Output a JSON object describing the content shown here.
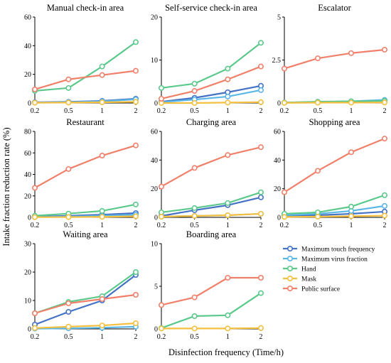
{
  "figure": {
    "ylabel": "Intake fraction reduction rate (%)",
    "xlabel": "Disinfection frequency (Time/h)"
  },
  "legend": {
    "items": [
      {
        "label": "Maximum touch frequency",
        "color": "#4472C4"
      },
      {
        "label": "Maximum virus fraction",
        "color": "#5BB7E5"
      },
      {
        "label": "Hand",
        "color": "#5CC98C"
      },
      {
        "label": "Mask",
        "color": "#F5C040"
      },
      {
        "label": "Public surface",
        "color": "#F0806A"
      }
    ]
  },
  "chart_data": [
    {
      "type": "line",
      "title": "Manual check-in area",
      "x": [
        "0.2",
        "0.5",
        "1",
        "2"
      ],
      "ylim": [
        0,
        60
      ],
      "yticks": [
        0,
        20,
        40,
        60
      ],
      "series": [
        {
          "name": "Maximum touch frequency",
          "values": [
            0.5,
            0.8,
            1.5,
            3
          ]
        },
        {
          "name": "Maximum virus fraction",
          "values": [
            0.3,
            0.6,
            1.2,
            2.5
          ]
        },
        {
          "name": "Hand",
          "values": [
            8.5,
            10.5,
            25.5,
            42.5
          ]
        },
        {
          "name": "Mask",
          "values": [
            0.2,
            0.3,
            0.5,
            0.8
          ]
        },
        {
          "name": "Public surface",
          "values": [
            9.5,
            16.5,
            19.5,
            22.5
          ]
        }
      ]
    },
    {
      "type": "line",
      "title": "Self-service check-in area",
      "x": [
        "0.2",
        "0.5",
        "1",
        "2"
      ],
      "ylim": [
        0,
        20
      ],
      "yticks": [
        0,
        10,
        20
      ],
      "series": [
        {
          "name": "Maximum touch frequency",
          "values": [
            0.3,
            1.2,
            2.5,
            4
          ]
        },
        {
          "name": "Maximum virus fraction",
          "values": [
            0.2,
            0.8,
            1.5,
            3
          ]
        },
        {
          "name": "Hand",
          "values": [
            3.5,
            4.5,
            8,
            14
          ]
        },
        {
          "name": "Mask",
          "values": [
            0,
            0,
            0.1,
            0.2
          ]
        },
        {
          "name": "Public surface",
          "values": [
            1,
            2.8,
            5.5,
            8.5
          ]
        }
      ]
    },
    {
      "type": "line",
      "title": "Escalator",
      "x": [
        "0.2",
        "0.5",
        "1",
        "2"
      ],
      "ylim": [
        0,
        5
      ],
      "yticks": [
        0,
        2.5,
        5
      ],
      "series": [
        {
          "name": "Maximum touch frequency",
          "values": [
            0.02,
            0.05,
            0.08,
            0.15
          ]
        },
        {
          "name": "Maximum virus fraction",
          "values": [
            0.03,
            0.06,
            0.1,
            0.18
          ]
        },
        {
          "name": "Hand",
          "values": [
            0.02,
            0.08,
            0.1,
            0.12
          ]
        },
        {
          "name": "Mask",
          "values": [
            0.01,
            0.02,
            0.02,
            0.03
          ]
        },
        {
          "name": "Public surface",
          "values": [
            2,
            2.6,
            2.9,
            3.1
          ]
        }
      ]
    },
    {
      "type": "line",
      "title": "Restaurant",
      "x": [
        "0.2",
        "0.5",
        "1",
        "2"
      ],
      "ylim": [
        0,
        80
      ],
      "yticks": [
        0,
        20,
        40,
        60,
        80
      ],
      "series": [
        {
          "name": "Maximum touch frequency",
          "values": [
            0.5,
            1.5,
            2.5,
            4
          ]
        },
        {
          "name": "Maximum virus fraction",
          "values": [
            0.3,
            0.8,
            1.5,
            2.5
          ]
        },
        {
          "name": "Hand",
          "values": [
            1.5,
            3.5,
            6,
            12
          ]
        },
        {
          "name": "Mask",
          "values": [
            0.2,
            0.3,
            0.5,
            1
          ]
        },
        {
          "name": "Public surface",
          "values": [
            27.5,
            45,
            57.5,
            67
          ]
        }
      ]
    },
    {
      "type": "line",
      "title": "Charging area",
      "x": [
        "0.2",
        "0.5",
        "1",
        "2"
      ],
      "ylim": [
        0,
        60
      ],
      "yticks": [
        0,
        20,
        40,
        60
      ],
      "series": [
        {
          "name": "Maximum touch frequency",
          "values": [
            1,
            5,
            8.5,
            14
          ]
        },
        {
          "name": "Maximum virus fraction",
          "values": [
            0.5,
            1,
            1.5,
            2.5
          ]
        },
        {
          "name": "Hand",
          "values": [
            3.5,
            6.5,
            10,
            17.5
          ]
        },
        {
          "name": "Mask",
          "values": [
            0.5,
            1,
            1.5,
            2.5
          ]
        },
        {
          "name": "Public surface",
          "values": [
            21.5,
            34.5,
            43.5,
            49
          ]
        }
      ]
    },
    {
      "type": "line",
      "title": "Shopping area",
      "x": [
        "0.2",
        "0.5",
        "1",
        "2"
      ],
      "ylim": [
        0,
        60
      ],
      "yticks": [
        0,
        20,
        40,
        60
      ],
      "series": [
        {
          "name": "Maximum touch frequency",
          "values": [
            1,
            1.5,
            2.5,
            4
          ]
        },
        {
          "name": "Maximum virus fraction",
          "values": [
            1.5,
            2.5,
            4.5,
            8
          ]
        },
        {
          "name": "Hand",
          "values": [
            2.5,
            3.5,
            7.5,
            15.5
          ]
        },
        {
          "name": "Mask",
          "values": [
            0.3,
            0.5,
            0.8,
            1.2
          ]
        },
        {
          "name": "Public surface",
          "values": [
            17.5,
            32.5,
            45.5,
            55
          ]
        }
      ]
    },
    {
      "type": "line",
      "title": "Waiting area",
      "x": [
        "0.2",
        "0.5",
        "1",
        "2"
      ],
      "ylim": [
        0,
        30
      ],
      "yticks": [
        0,
        10,
        20,
        30
      ],
      "series": [
        {
          "name": "Maximum touch frequency",
          "values": [
            1.5,
            6,
            10,
            19
          ]
        },
        {
          "name": "Maximum virus fraction",
          "values": [
            0.1,
            0.2,
            0.4,
            0.8
          ]
        },
        {
          "name": "Hand",
          "values": [
            5.5,
            9.5,
            11.5,
            20
          ]
        },
        {
          "name": "Mask",
          "values": [
            0.3,
            0.8,
            1.2,
            2
          ]
        },
        {
          "name": "Public surface",
          "values": [
            5.5,
            9,
            10.5,
            12
          ]
        }
      ]
    },
    {
      "type": "line",
      "title": "Boarding area",
      "x": [
        "0.2",
        "0.5",
        "1",
        "2"
      ],
      "ylim": [
        0,
        10
      ],
      "yticks": [
        0,
        5,
        10
      ],
      "series": [
        {
          "name": "Hand",
          "values": [
            0.1,
            1.5,
            1.6,
            4.2
          ]
        },
        {
          "name": "Mask",
          "values": [
            0.05,
            0.05,
            0.05,
            0.1
          ]
        },
        {
          "name": "Public surface",
          "values": [
            2.8,
            3.7,
            6,
            6
          ]
        }
      ]
    }
  ]
}
